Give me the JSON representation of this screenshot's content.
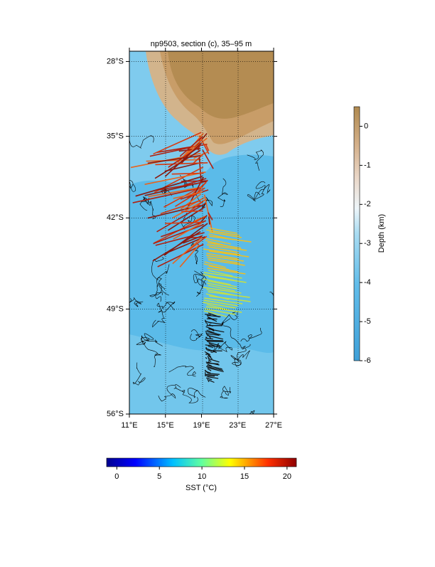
{
  "map": {
    "title": "np9503, section (c), 35–95 m",
    "lon_range": [
      11,
      27
    ],
    "lat_range": [
      -56,
      -27
    ],
    "lat_ticks": [
      {
        "value": -28,
        "label": "28°S"
      },
      {
        "value": -35,
        "label": "35°S"
      },
      {
        "value": -42,
        "label": "42°S"
      },
      {
        "value": -49,
        "label": "49°S"
      },
      {
        "value": -56,
        "label": "56°S"
      }
    ],
    "lon_ticks": [
      {
        "value": 11,
        "label": "11°E"
      },
      {
        "value": 15,
        "label": "15°E"
      },
      {
        "value": 19,
        "label": "19°E"
      },
      {
        "value": 23,
        "label": "23°E"
      },
      {
        "value": 27,
        "label": "27°E"
      }
    ],
    "depth_colorbar": {
      "label": "Depth (km)",
      "range": [
        -6,
        0.5
      ],
      "ticks": [
        0,
        -1,
        -2,
        -3,
        -4,
        -5,
        -6
      ]
    },
    "sst_colorbar": {
      "label": "SST (°C)",
      "range": [
        -1.2,
        21.1
      ],
      "ticks": [
        0,
        5,
        10,
        15,
        20
      ]
    }
  }
}
